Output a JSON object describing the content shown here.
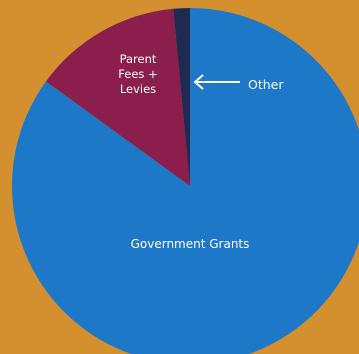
{
  "background_color": "#D4902E",
  "chart_data": {
    "type": "pie",
    "slices": [
      {
        "label": "Government Grants",
        "value": 85,
        "color": "#1E78C8"
      },
      {
        "label": "Parent Fees + Levies",
        "value": 13.5,
        "color": "#8B1E4C"
      },
      {
        "label": "Other",
        "value": 1.5,
        "color": "#1E2A52"
      }
    ],
    "annotations": {
      "government_label": "Government Grants",
      "parent_label_lines": [
        "Parent",
        "Fees +",
        "Levies"
      ],
      "other_label": "Other"
    }
  }
}
